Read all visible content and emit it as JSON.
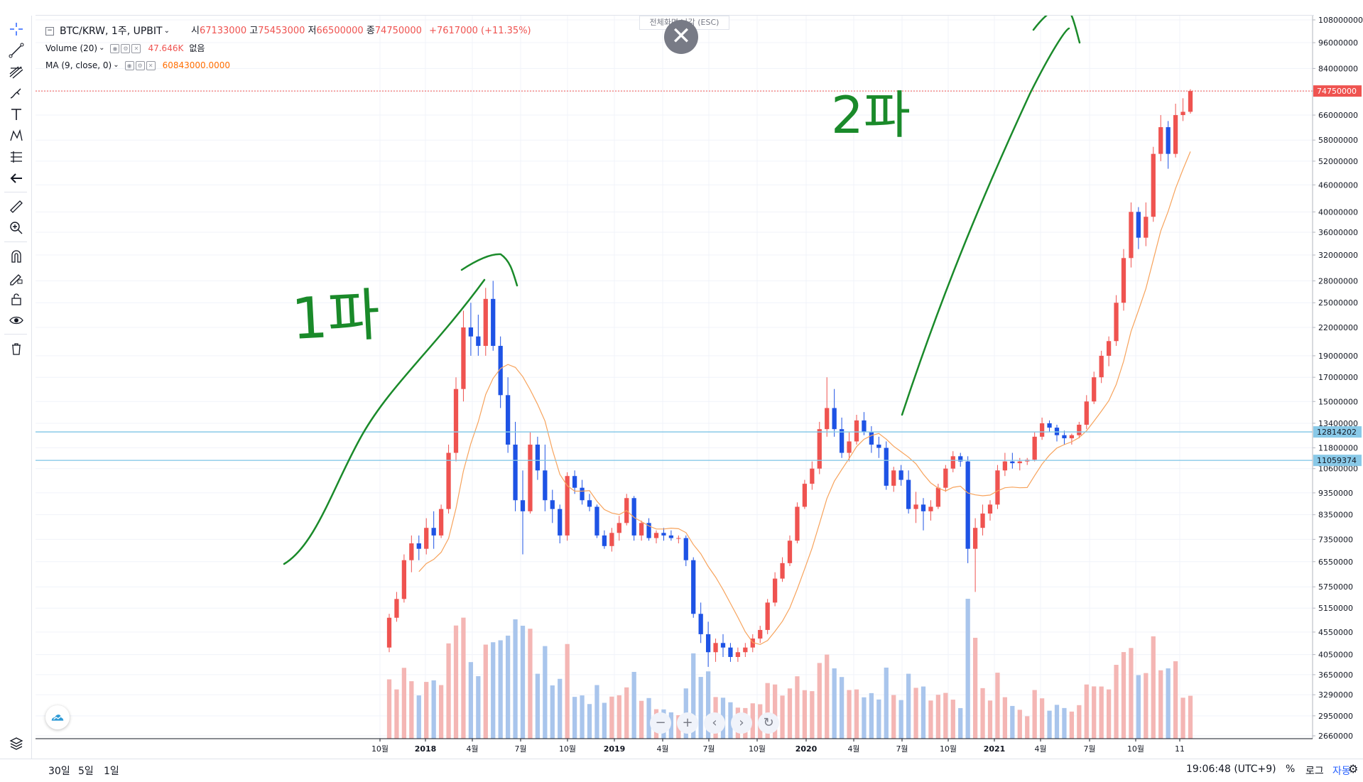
{
  "legend": {
    "symbol": "BTC/KRW, 1주, UPBIT",
    "open_label": "시",
    "open": "67133000",
    "high_label": "고",
    "high": "75453000",
    "low_label": "저",
    "low": "66500000",
    "close_label": "종",
    "close": "74750000",
    "change": "+7617000 (+11.35%)",
    "volume_name": "Volume (20)",
    "volume_value": "47.646K",
    "volume_extra": "없음",
    "ma_name": "MA (9, close, 0)",
    "ma_value": "60843000.0000"
  },
  "fullscreen_hint": "전체화면 나감 (ESC)",
  "annotations": {
    "wave1": "1파",
    "wave2": "2파"
  },
  "price_axis": {
    "ticks": [
      "108000000",
      "96000000",
      "84000000",
      "74750000",
      "66000000",
      "58000000",
      "52000000",
      "46000000",
      "40000000",
      "36000000",
      "32000000",
      "28000000",
      "25000000",
      "22000000",
      "19000000",
      "17000000",
      "15000000",
      "13400000",
      "11800000",
      "10600000",
      "9350000",
      "8350000",
      "7350000",
      "6550000",
      "5750000",
      "5150000",
      "4550000",
      "4050000",
      "3650000",
      "3290000",
      "2950000",
      "2660000"
    ],
    "last_price_label": "74750000",
    "level1_label": "12814202",
    "level2_label": "11059374"
  },
  "time_axis": [
    "10월",
    "2018",
    "4월",
    "7월",
    "10월",
    "2019",
    "4월",
    "7월",
    "10월",
    "2020",
    "4월",
    "7월",
    "10월",
    "2021",
    "4월",
    "7월",
    "10월",
    "11"
  ],
  "bottom_bar": {
    "ranges": [
      "30일",
      "5일",
      "1일"
    ],
    "clock": "19:06:48 (UTC+9)",
    "percent": "%",
    "log": "로그",
    "auto": "자동"
  },
  "colors": {
    "up": "#ef5350",
    "down": "#1e53e5",
    "vol_up": "#f4b6b4",
    "vol_down": "#a9c5ec",
    "ma": "#f7a35c",
    "level": "#89c9e8",
    "pen": "#1a8a2a"
  },
  "chart_data": {
    "type": "candlestick",
    "title": "BTC/KRW, 1주, UPBIT",
    "price_scale": "log",
    "series": [
      {
        "name": "MA (9, close, 0)"
      }
    ],
    "horizontal_levels": [
      12814202,
      11059374
    ],
    "last_price": 74750000,
    "time_range": [
      "2017-10",
      "2021-03"
    ],
    "candles_ohlc_krw": [
      [
        4200000,
        5000000,
        4100000,
        4900000
      ],
      [
        4900000,
        5600000,
        4800000,
        5400000
      ],
      [
        5400000,
        6800000,
        5300000,
        6600000
      ],
      [
        6600000,
        7500000,
        6200000,
        7200000
      ],
      [
        7200000,
        7500000,
        6600000,
        7000000
      ],
      [
        7000000,
        8200000,
        6800000,
        7800000
      ],
      [
        7800000,
        8500000,
        7000000,
        7500000
      ],
      [
        7500000,
        8800000,
        7400000,
        8600000
      ],
      [
        8600000,
        12000000,
        8400000,
        11500000
      ],
      [
        11500000,
        17000000,
        11000000,
        16000000
      ],
      [
        16000000,
        24000000,
        15000000,
        22000000
      ],
      [
        22000000,
        25000000,
        19000000,
        21000000
      ],
      [
        21000000,
        23500000,
        19000000,
        20000000
      ],
      [
        20000000,
        27000000,
        19000000,
        25500000
      ],
      [
        25500000,
        28000000,
        19500000,
        20000000
      ],
      [
        20000000,
        21000000,
        14500000,
        15500000
      ],
      [
        15500000,
        17000000,
        11500000,
        12000000
      ],
      [
        12000000,
        13500000,
        8500000,
        9000000
      ],
      [
        9000000,
        10500000,
        6800000,
        8500000
      ],
      [
        8500000,
        12800000,
        8400000,
        12000000
      ],
      [
        12000000,
        12500000,
        10000000,
        10500000
      ],
      [
        10500000,
        12000000,
        8500000,
        9000000
      ],
      [
        9000000,
        9500000,
        8000000,
        8600000
      ],
      [
        8600000,
        8800000,
        7200000,
        7500000
      ],
      [
        7500000,
        10400000,
        7300000,
        10200000
      ],
      [
        10200000,
        10500000,
        9300000,
        9600000
      ],
      [
        9600000,
        10000000,
        8800000,
        9000000
      ],
      [
        9000000,
        9300000,
        8500000,
        8700000
      ],
      [
        8700000,
        8800000,
        7400000,
        7500000
      ],
      [
        7500000,
        7700000,
        7000000,
        7100000
      ],
      [
        7100000,
        7800000,
        6900000,
        7600000
      ],
      [
        7600000,
        8300000,
        7300000,
        8000000
      ],
      [
        8000000,
        9300000,
        7900000,
        9100000
      ],
      [
        9100000,
        9200000,
        7300000,
        7500000
      ],
      [
        7500000,
        8100000,
        7300000,
        8000000
      ],
      [
        8000000,
        8200000,
        7300000,
        7400000
      ],
      [
        7400000,
        7700000,
        7200000,
        7600000
      ],
      [
        7600000,
        7800000,
        7300000,
        7500000
      ],
      [
        7500000,
        7700000,
        7300000,
        7400000
      ],
      [
        7400000,
        7500000,
        7200000,
        7400000
      ],
      [
        7400000,
        7500000,
        6400000,
        6600000
      ],
      [
        6600000,
        6700000,
        4900000,
        5000000
      ],
      [
        5000000,
        5300000,
        4300000,
        4500000
      ],
      [
        4500000,
        4800000,
        3800000,
        4100000
      ],
      [
        4100000,
        4400000,
        3900000,
        4300000
      ],
      [
        4300000,
        4500000,
        4000000,
        4200000
      ],
      [
        4200000,
        4300000,
        3900000,
        4000000
      ],
      [
        4000000,
        4200000,
        3900000,
        4100000
      ],
      [
        4100000,
        4300000,
        4000000,
        4200000
      ],
      [
        4200000,
        4500000,
        4100000,
        4400000
      ],
      [
        4400000,
        4700000,
        4300000,
        4600000
      ],
      [
        4600000,
        5400000,
        4500000,
        5300000
      ],
      [
        5300000,
        6200000,
        5200000,
        6000000
      ],
      [
        6000000,
        6700000,
        5900000,
        6500000
      ],
      [
        6500000,
        7500000,
        6400000,
        7300000
      ],
      [
        7300000,
        8900000,
        7200000,
        8700000
      ],
      [
        8700000,
        10000000,
        8600000,
        9800000
      ],
      [
        9800000,
        11000000,
        9500000,
        10600000
      ],
      [
        10600000,
        13500000,
        10300000,
        13000000
      ],
      [
        13000000,
        17000000,
        12500000,
        14500000
      ],
      [
        14500000,
        16000000,
        12500000,
        13000000
      ],
      [
        13000000,
        13800000,
        11200000,
        11500000
      ],
      [
        11500000,
        12800000,
        11000000,
        12200000
      ],
      [
        12200000,
        14000000,
        12000000,
        13600000
      ],
      [
        13600000,
        14200000,
        12600000,
        12800000
      ],
      [
        12800000,
        13200000,
        11500000,
        12000000
      ],
      [
        12000000,
        12500000,
        11200000,
        11800000
      ],
      [
        11800000,
        12200000,
        9500000,
        9700000
      ],
      [
        9700000,
        10700000,
        9400000,
        10500000
      ],
      [
        10500000,
        10800000,
        9700000,
        10000000
      ],
      [
        10000000,
        10500000,
        8400000,
        8600000
      ],
      [
        8600000,
        9400000,
        8000000,
        8800000
      ],
      [
        8800000,
        9100000,
        7700000,
        8500000
      ],
      [
        8500000,
        9000000,
        8100000,
        8700000
      ],
      [
        8700000,
        9800000,
        8600000,
        9600000
      ],
      [
        9600000,
        10800000,
        9400000,
        10600000
      ],
      [
        10600000,
        11600000,
        10400000,
        11300000
      ],
      [
        11300000,
        11500000,
        10700000,
        11000000
      ],
      [
        11000000,
        11300000,
        6500000,
        7000000
      ],
      [
        7000000,
        8200000,
        5600000,
        7800000
      ],
      [
        7800000,
        8800000,
        7500000,
        8400000
      ],
      [
        8400000,
        9000000,
        8100000,
        8800000
      ],
      [
        8800000,
        10800000,
        8600000,
        10500000
      ],
      [
        10500000,
        11500000,
        10200000,
        11000000
      ],
      [
        11000000,
        11500000,
        10600000,
        10900000
      ],
      [
        10900000,
        11200000,
        10500000,
        11000000
      ],
      [
        11000000,
        11200000,
        10800000,
        11100000
      ],
      [
        11100000,
        12800000,
        11000000,
        12500000
      ],
      [
        12500000,
        13800000,
        12300000,
        13400000
      ],
      [
        13400000,
        13600000,
        12800000,
        13100000
      ],
      [
        13100000,
        13300000,
        12200000,
        12600000
      ],
      [
        12600000,
        12900000,
        12000000,
        12400000
      ],
      [
        12400000,
        12700000,
        12000000,
        12600000
      ],
      [
        12600000,
        13500000,
        12400000,
        13300000
      ],
      [
        13300000,
        15500000,
        13000000,
        15000000
      ],
      [
        15000000,
        17500000,
        14800000,
        17000000
      ],
      [
        17000000,
        19500000,
        16500000,
        19000000
      ],
      [
        19000000,
        21000000,
        18000000,
        20500000
      ],
      [
        20500000,
        26000000,
        20000000,
        25000000
      ],
      [
        25000000,
        33000000,
        24000000,
        31500000
      ],
      [
        31500000,
        42000000,
        30000000,
        40000000
      ],
      [
        40000000,
        41000000,
        33000000,
        35000000
      ],
      [
        35000000,
        42000000,
        33500000,
        39000000
      ],
      [
        39000000,
        56000000,
        38000000,
        54000000
      ],
      [
        54000000,
        66000000,
        52000000,
        62000000
      ],
      [
        62000000,
        64000000,
        50000000,
        54000000
      ],
      [
        54000000,
        70000000,
        53000000,
        66000000
      ],
      [
        66000000,
        72000000,
        64000000,
        67133000
      ],
      [
        67133000,
        75453000,
        66500000,
        74750000
      ]
    ]
  }
}
